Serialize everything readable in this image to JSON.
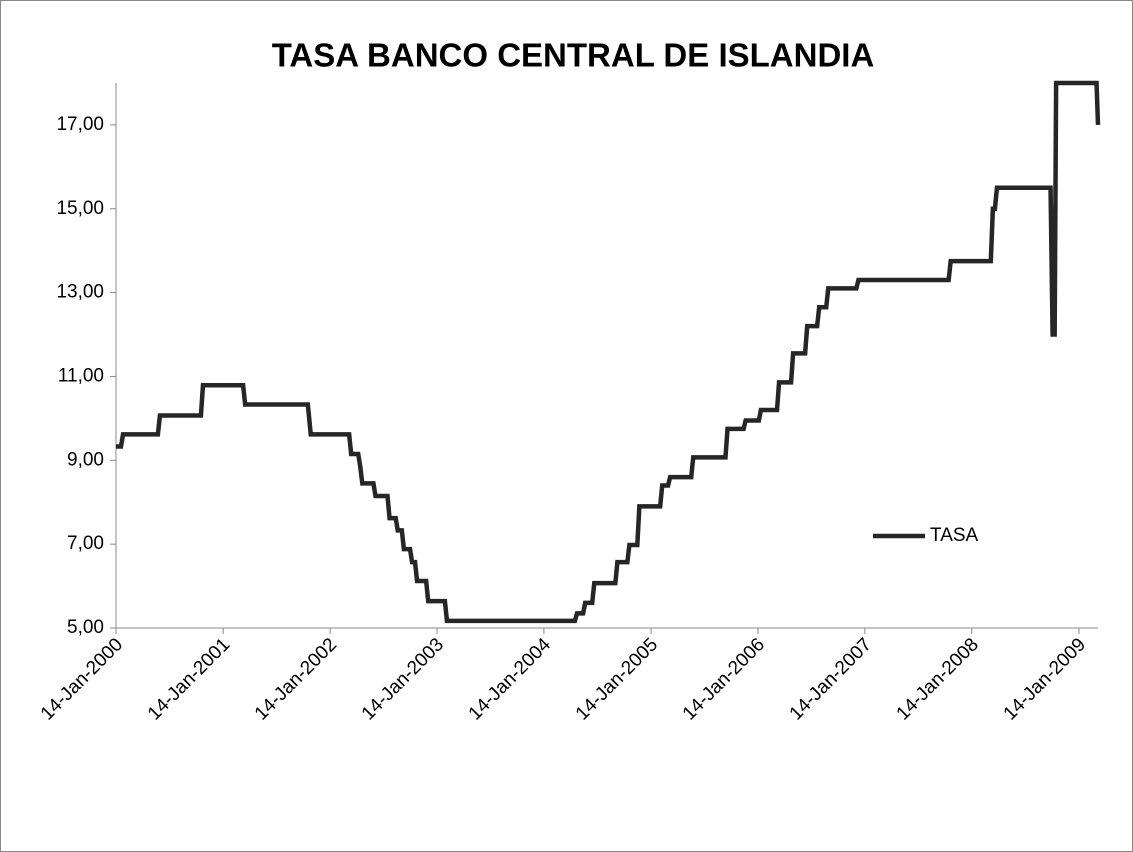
{
  "chart_data": {
    "type": "line",
    "title": "TASA BANCO CENTRAL DE ISLANDIA",
    "x": [
      "2000-01-14",
      "2000-01-31",
      "2000-02-07",
      "2000-06-05",
      "2000-06-12",
      "2000-10-30",
      "2000-11-06",
      "2001-03-23",
      "2001-03-30",
      "2001-10-30",
      "2001-11-09",
      "2002-03-20",
      "2002-03-27",
      "2002-04-20",
      "2002-04-27",
      "2002-05-04",
      "2002-06-11",
      "2002-06-18",
      "2002-07-29",
      "2002-08-05",
      "2002-08-26",
      "2002-09-02",
      "2002-09-16",
      "2002-09-23",
      "2002-10-14",
      "2002-10-21",
      "2002-10-31",
      "2002-11-07",
      "2002-12-08",
      "2002-12-15",
      "2003-02-10",
      "2003-02-17",
      "2004-04-29",
      "2004-05-06",
      "2004-05-27",
      "2004-06-03",
      "2004-06-27",
      "2004-07-04",
      "2004-09-14",
      "2004-09-21",
      "2004-10-25",
      "2004-11-01",
      "2004-11-28",
      "2004-12-05",
      "2005-02-14",
      "2005-02-21",
      "2005-03-13",
      "2005-03-20",
      "2005-05-31",
      "2005-06-07",
      "2005-09-25",
      "2005-10-02",
      "2005-11-26",
      "2005-12-03",
      "2006-01-17",
      "2006-01-24",
      "2006-03-20",
      "2006-03-27",
      "2006-05-07",
      "2006-05-14",
      "2006-06-24",
      "2006-07-01",
      "2006-08-04",
      "2006-08-11",
      "2006-09-04",
      "2006-09-11",
      "2006-12-16",
      "2006-12-23",
      "2007-10-27",
      "2007-11-03",
      "2008-03-19",
      "2008-03-26",
      "2008-04-02",
      "2008-04-09",
      "2008-10-09",
      "2008-10-16",
      "2008-10-23",
      "2008-10-28",
      "2009-03-15",
      "2009-03-20"
    ],
    "series": [
      {
        "name": "TASA",
        "color": "#262626",
        "values": [
          9.33,
          9.33,
          9.62,
          9.62,
          10.07,
          10.07,
          10.79,
          10.79,
          10.33,
          10.33,
          9.62,
          9.62,
          9.15,
          9.15,
          8.85,
          8.45,
          8.45,
          8.15,
          8.15,
          7.62,
          7.62,
          7.33,
          7.33,
          6.88,
          6.88,
          6.57,
          6.57,
          6.12,
          6.12,
          5.64,
          5.64,
          5.17,
          5.17,
          5.35,
          5.35,
          5.6,
          5.6,
          6.07,
          6.07,
          6.57,
          6.57,
          6.98,
          6.98,
          7.9,
          7.9,
          8.4,
          8.4,
          8.6,
          8.6,
          9.07,
          9.07,
          9.75,
          9.75,
          9.95,
          9.95,
          10.2,
          10.2,
          10.86,
          10.86,
          11.55,
          11.55,
          12.2,
          12.2,
          12.65,
          12.65,
          13.1,
          13.1,
          13.3,
          13.3,
          13.75,
          13.75,
          15.0,
          15.0,
          15.5,
          15.5,
          12.0,
          12.0,
          18.0,
          18.0,
          17.0
        ]
      }
    ],
    "xlim": [
      "2000-01-14",
      "2009-03-20"
    ],
    "xticks": [
      {
        "value": "2000-01-14",
        "label": "14-Jan-2000"
      },
      {
        "value": "2001-01-14",
        "label": "14-Jan-2001"
      },
      {
        "value": "2002-01-14",
        "label": "14-Jan-2002"
      },
      {
        "value": "2003-01-14",
        "label": "14-Jan-2003"
      },
      {
        "value": "2004-01-14",
        "label": "14-Jan-2004"
      },
      {
        "value": "2005-01-14",
        "label": "14-Jan-2005"
      },
      {
        "value": "2006-01-14",
        "label": "14-Jan-2006"
      },
      {
        "value": "2007-01-14",
        "label": "14-Jan-2007"
      },
      {
        "value": "2008-01-14",
        "label": "14-Jan-2008"
      },
      {
        "value": "2009-01-14",
        "label": "14-Jan-2009"
      }
    ],
    "ylim": [
      5,
      18
    ],
    "yticks": [
      {
        "value": 5,
        "label": "5,00"
      },
      {
        "value": 7,
        "label": "7,00"
      },
      {
        "value": 9,
        "label": "9,00"
      },
      {
        "value": 11,
        "label": "11,00"
      },
      {
        "value": 13,
        "label": "13,00"
      },
      {
        "value": 15,
        "label": "15,00"
      },
      {
        "value": 17,
        "label": "17,00"
      }
    ],
    "grid": false,
    "legend_position": "right"
  }
}
